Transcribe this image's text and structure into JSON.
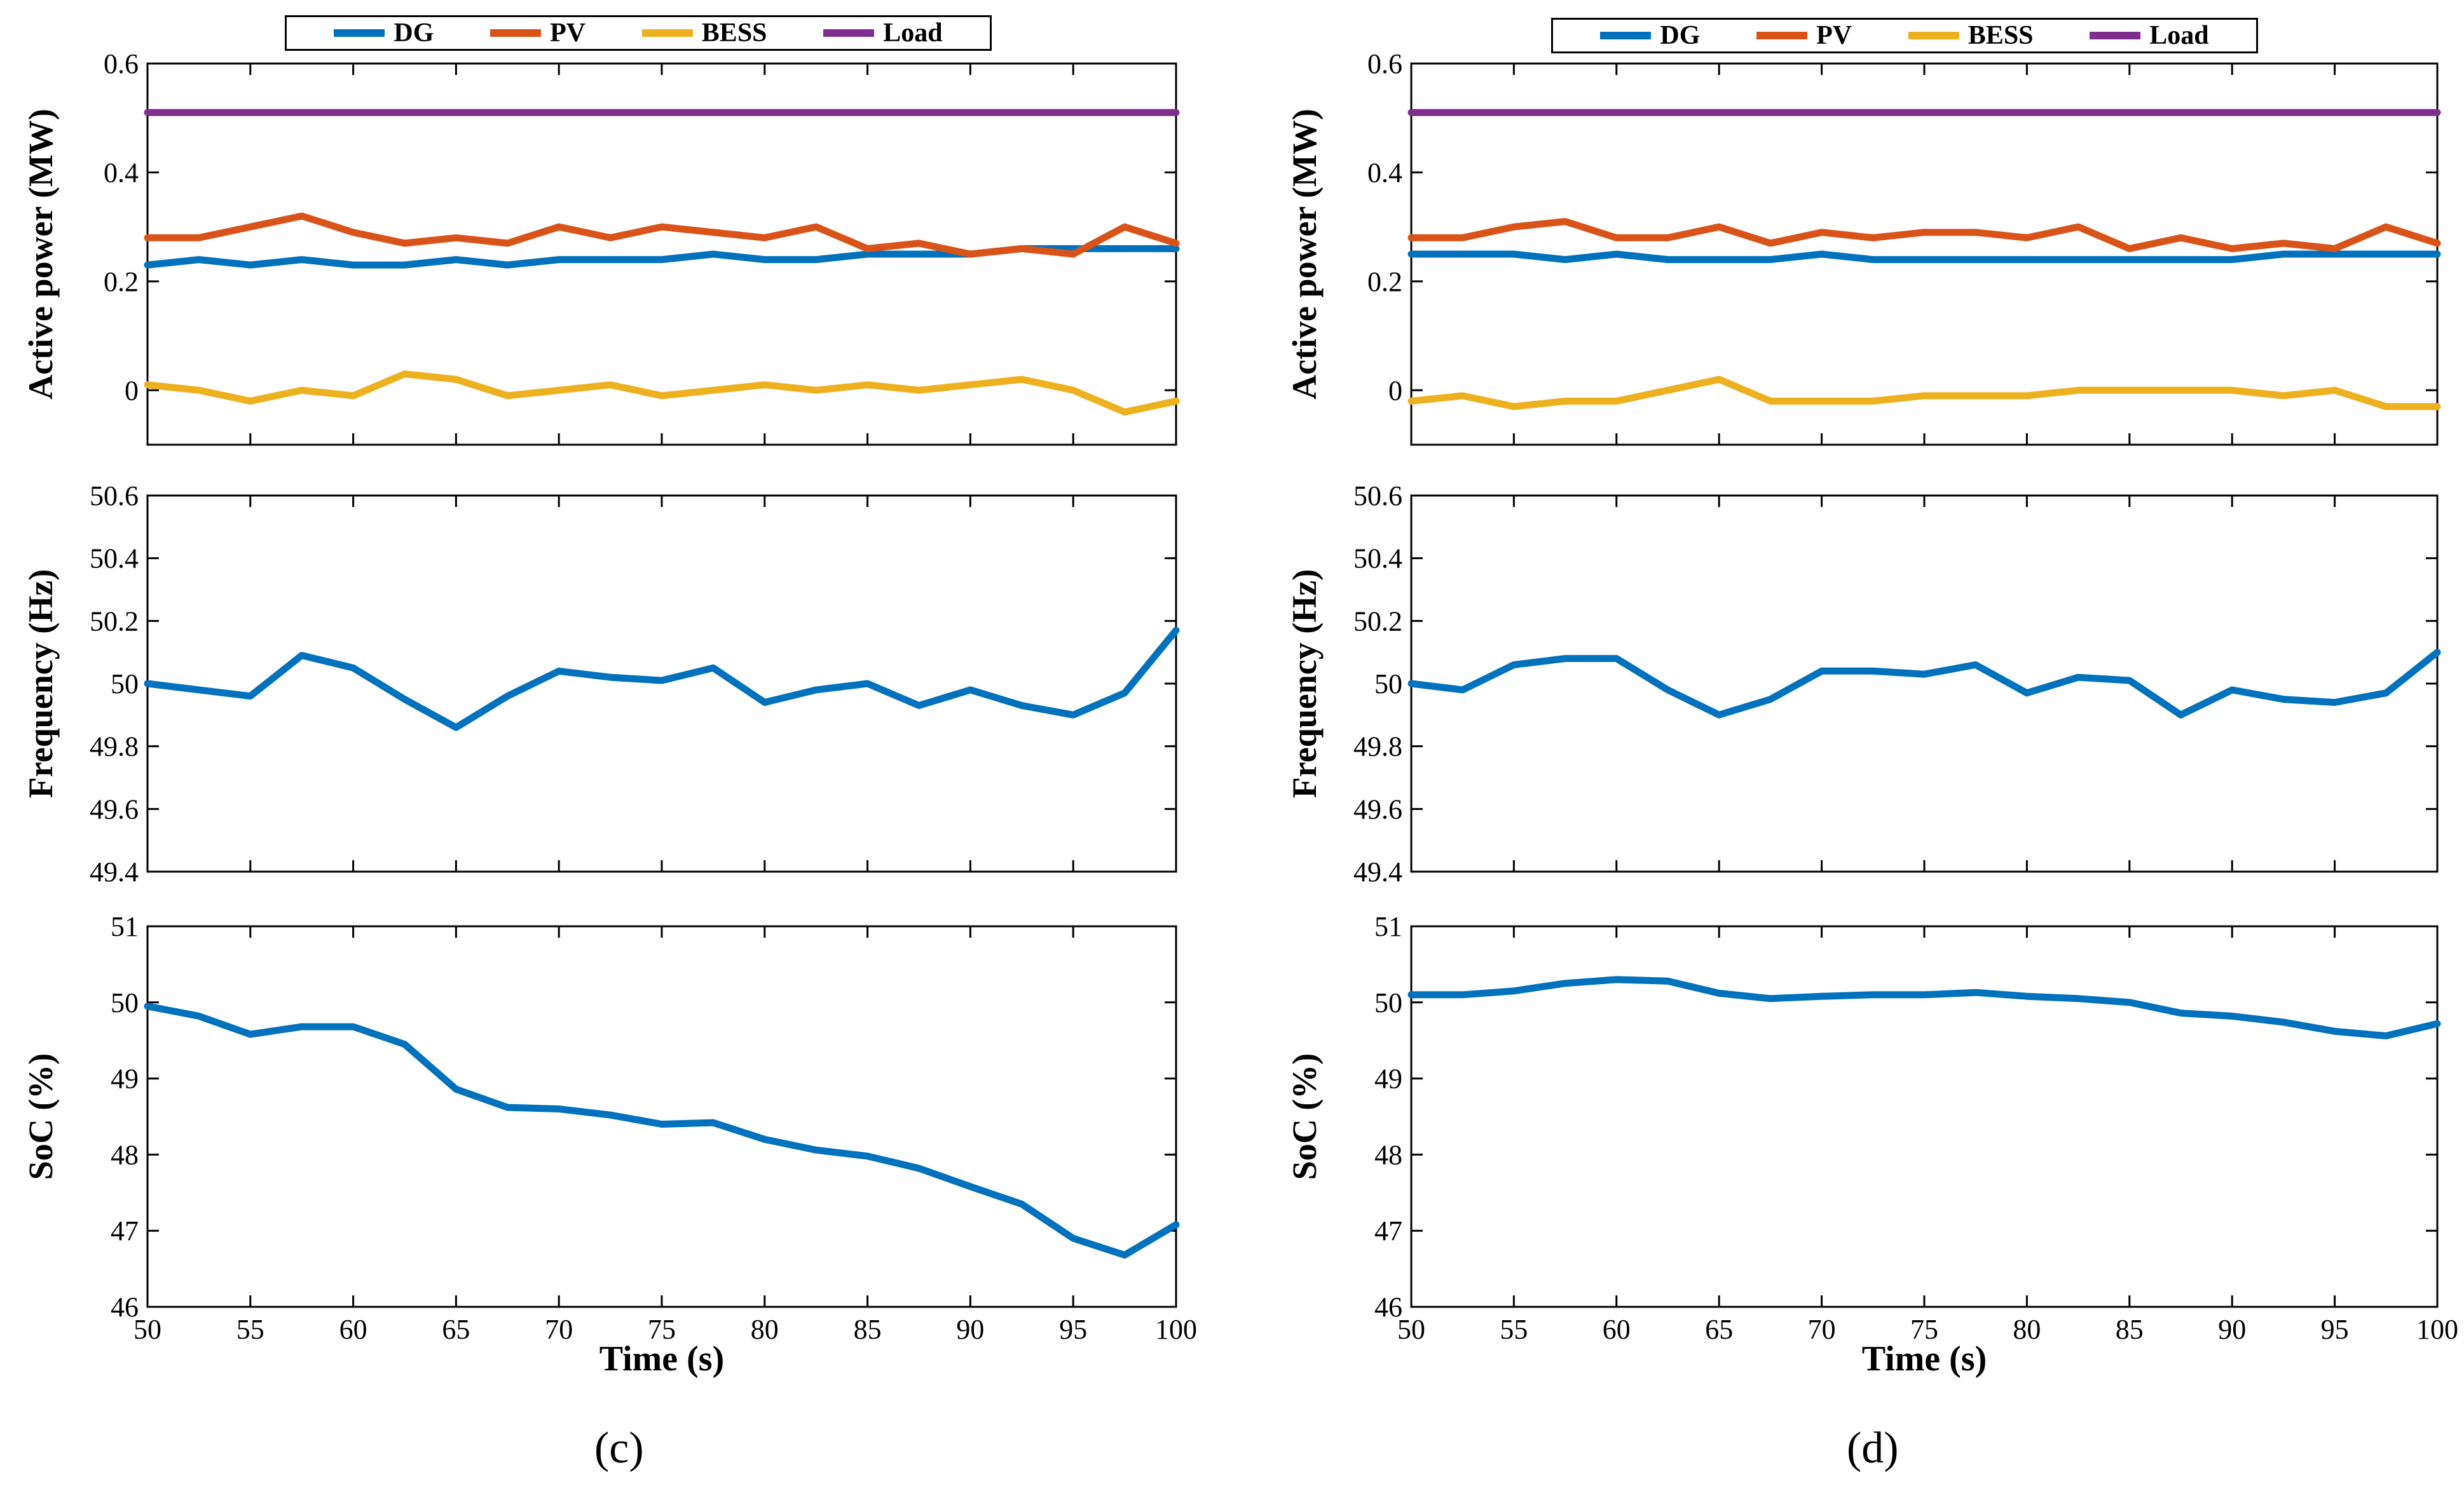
{
  "colors": {
    "DG": "#0072BD",
    "PV": "#D95319",
    "BESS": "#EDB120",
    "Load": "#7E2F8E"
  },
  "figures": [
    {
      "label": "(c)",
      "legend": [
        "DG",
        "PV",
        "BESS",
        "Load"
      ],
      "xlabel": "Time (s)"
    },
    {
      "label": "(d)",
      "legend": [
        "DG",
        "PV",
        "BESS",
        "Load"
      ],
      "xlabel": "Time (s)"
    }
  ],
  "chart_data": [
    {
      "type": "line",
      "figure": "(c)",
      "panel": "active-power",
      "ylabel": "Active power (MW)",
      "xlim": [
        50,
        100
      ],
      "ylim": [
        -0.1,
        0.6
      ],
      "xticks": [],
      "yticks": [
        0,
        0.2,
        0.4,
        0.6
      ],
      "x": [
        50,
        52.5,
        55,
        57.5,
        60,
        62.5,
        65,
        67.5,
        70,
        72.5,
        75,
        77.5,
        80,
        82.5,
        85,
        87.5,
        90,
        92.5,
        95,
        97.5,
        100
      ],
      "series": [
        {
          "name": "DG",
          "values": [
            0.23,
            0.24,
            0.23,
            0.24,
            0.23,
            0.23,
            0.24,
            0.23,
            0.24,
            0.24,
            0.24,
            0.25,
            0.24,
            0.24,
            0.25,
            0.25,
            0.25,
            0.26,
            0.26,
            0.26,
            0.26
          ]
        },
        {
          "name": "PV",
          "values": [
            0.28,
            0.28,
            0.3,
            0.32,
            0.29,
            0.27,
            0.28,
            0.27,
            0.3,
            0.28,
            0.3,
            0.29,
            0.28,
            0.3,
            0.26,
            0.27,
            0.25,
            0.26,
            0.25,
            0.3,
            0.27
          ]
        },
        {
          "name": "BESS",
          "values": [
            0.01,
            0.0,
            -0.02,
            0.0,
            -0.01,
            0.03,
            0.02,
            -0.01,
            0.0,
            0.01,
            -0.01,
            0.0,
            0.01,
            0.0,
            0.01,
            0.0,
            0.01,
            0.02,
            0.0,
            -0.04,
            -0.02
          ]
        },
        {
          "name": "Load",
          "values": [
            0.51,
            0.51,
            0.51,
            0.51,
            0.51,
            0.51,
            0.51,
            0.51,
            0.51,
            0.51,
            0.51,
            0.51,
            0.51,
            0.51,
            0.51,
            0.51,
            0.51,
            0.51,
            0.51,
            0.51,
            0.51
          ]
        }
      ]
    },
    {
      "type": "line",
      "figure": "(c)",
      "panel": "frequency",
      "ylabel": "Frequency (Hz)",
      "xlim": [
        50,
        100
      ],
      "ylim": [
        49.4,
        50.6
      ],
      "xticks": [],
      "yticks": [
        49.4,
        49.6,
        49.8,
        50,
        50.2,
        50.4,
        50.6
      ],
      "x": [
        50,
        52.5,
        55,
        57.5,
        60,
        62.5,
        65,
        67.5,
        70,
        72.5,
        75,
        77.5,
        80,
        82.5,
        85,
        87.5,
        90,
        92.5,
        95,
        97.5,
        100
      ],
      "series": [
        {
          "name": "Frequency",
          "values": [
            50.0,
            49.98,
            49.96,
            50.09,
            50.05,
            49.95,
            49.86,
            49.96,
            50.04,
            50.02,
            50.01,
            50.05,
            49.94,
            49.98,
            50.0,
            49.93,
            49.98,
            49.93,
            49.9,
            49.97,
            50.17
          ]
        }
      ]
    },
    {
      "type": "line",
      "figure": "(c)",
      "panel": "soc",
      "ylabel": "SoC (%)",
      "xlabel": "Time (s)",
      "xlim": [
        50,
        100
      ],
      "ylim": [
        46,
        51
      ],
      "xticks": [
        50,
        55,
        60,
        65,
        70,
        75,
        80,
        85,
        90,
        95,
        100
      ],
      "yticks": [
        46,
        47,
        48,
        49,
        50,
        51
      ],
      "x": [
        50,
        52.5,
        55,
        57.5,
        60,
        62.5,
        65,
        67.5,
        70,
        72.5,
        75,
        77.5,
        80,
        82.5,
        85,
        87.5,
        90,
        92.5,
        95,
        97.5,
        100
      ],
      "series": [
        {
          "name": "SoC",
          "values": [
            49.95,
            49.82,
            49.58,
            49.68,
            49.68,
            49.45,
            48.86,
            48.62,
            48.6,
            48.52,
            48.4,
            48.42,
            48.2,
            48.06,
            47.98,
            47.82,
            47.58,
            47.35,
            46.9,
            46.68,
            47.08
          ]
        }
      ]
    },
    {
      "type": "line",
      "figure": "(d)",
      "panel": "active-power",
      "ylabel": "Active power (MW)",
      "xlim": [
        50,
        100
      ],
      "ylim": [
        -0.1,
        0.6
      ],
      "xticks": [],
      "yticks": [
        0,
        0.2,
        0.4,
        0.6
      ],
      "x": [
        50,
        52.5,
        55,
        57.5,
        60,
        62.5,
        65,
        67.5,
        70,
        72.5,
        75,
        77.5,
        80,
        82.5,
        85,
        87.5,
        90,
        92.5,
        95,
        97.5,
        100
      ],
      "series": [
        {
          "name": "DG",
          "values": [
            0.25,
            0.25,
            0.25,
            0.24,
            0.25,
            0.24,
            0.24,
            0.24,
            0.25,
            0.24,
            0.24,
            0.24,
            0.24,
            0.24,
            0.24,
            0.24,
            0.24,
            0.25,
            0.25,
            0.25,
            0.25
          ]
        },
        {
          "name": "PV",
          "values": [
            0.28,
            0.28,
            0.3,
            0.31,
            0.28,
            0.28,
            0.3,
            0.27,
            0.29,
            0.28,
            0.29,
            0.29,
            0.28,
            0.3,
            0.26,
            0.28,
            0.26,
            0.27,
            0.26,
            0.3,
            0.27
          ]
        },
        {
          "name": "BESS",
          "values": [
            -0.02,
            -0.01,
            -0.03,
            -0.02,
            -0.02,
            0.0,
            0.02,
            -0.02,
            -0.02,
            -0.02,
            -0.01,
            -0.01,
            -0.01,
            0.0,
            0.0,
            0.0,
            0.0,
            -0.01,
            0.0,
            -0.03,
            -0.03
          ]
        },
        {
          "name": "Load",
          "values": [
            0.51,
            0.51,
            0.51,
            0.51,
            0.51,
            0.51,
            0.51,
            0.51,
            0.51,
            0.51,
            0.51,
            0.51,
            0.51,
            0.51,
            0.51,
            0.51,
            0.51,
            0.51,
            0.51,
            0.51,
            0.51
          ]
        }
      ]
    },
    {
      "type": "line",
      "figure": "(d)",
      "panel": "frequency",
      "ylabel": "Frequency (Hz)",
      "xlim": [
        50,
        100
      ],
      "ylim": [
        49.4,
        50.6
      ],
      "xticks": [],
      "yticks": [
        49.4,
        49.6,
        49.8,
        50,
        50.2,
        50.4,
        50.6
      ],
      "x": [
        50,
        52.5,
        55,
        57.5,
        60,
        62.5,
        65,
        67.5,
        70,
        72.5,
        75,
        77.5,
        80,
        82.5,
        85,
        87.5,
        90,
        92.5,
        95,
        97.5,
        100
      ],
      "series": [
        {
          "name": "Frequency",
          "values": [
            50.0,
            49.98,
            50.06,
            50.08,
            50.08,
            49.98,
            49.9,
            49.95,
            50.04,
            50.04,
            50.03,
            50.06,
            49.97,
            50.02,
            50.01,
            49.9,
            49.98,
            49.95,
            49.94,
            49.97,
            50.1
          ]
        }
      ]
    },
    {
      "type": "line",
      "figure": "(d)",
      "panel": "soc",
      "ylabel": "SoC (%)",
      "xlabel": "Time (s)",
      "xlim": [
        50,
        100
      ],
      "ylim": [
        46,
        51
      ],
      "xticks": [
        50,
        55,
        60,
        65,
        70,
        75,
        80,
        85,
        90,
        95,
        100
      ],
      "yticks": [
        46,
        47,
        48,
        49,
        50,
        51
      ],
      "x": [
        50,
        52.5,
        55,
        57.5,
        60,
        62.5,
        65,
        67.5,
        70,
        72.5,
        75,
        77.5,
        80,
        82.5,
        85,
        87.5,
        90,
        92.5,
        95,
        97.5,
        100
      ],
      "series": [
        {
          "name": "SoC",
          "values": [
            50.1,
            50.1,
            50.15,
            50.25,
            50.3,
            50.28,
            50.12,
            50.05,
            50.08,
            50.1,
            50.1,
            50.13,
            50.08,
            50.05,
            50.0,
            49.86,
            49.82,
            49.74,
            49.62,
            49.56,
            49.72
          ]
        }
      ]
    }
  ]
}
